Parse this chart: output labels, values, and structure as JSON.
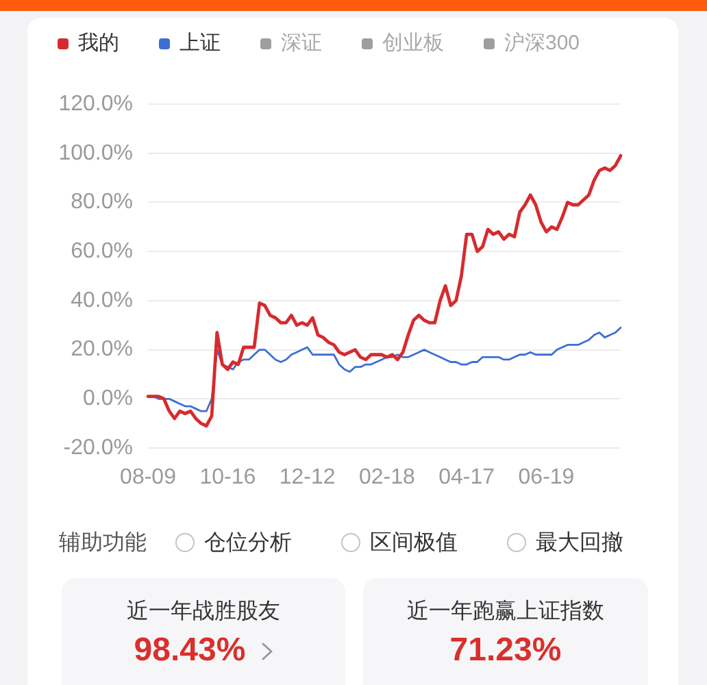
{
  "chart_data": [
    {
      "type": "line",
      "categories": [
        "08-09",
        null,
        null,
        null,
        null,
        null,
        null,
        null,
        null,
        null,
        null,
        null,
        null,
        null,
        null,
        "10-16",
        null,
        null,
        null,
        null,
        null,
        null,
        null,
        null,
        null,
        null,
        null,
        null,
        null,
        null,
        "12-12",
        null,
        null,
        null,
        null,
        null,
        null,
        null,
        null,
        null,
        null,
        null,
        null,
        null,
        null,
        "02-18",
        null,
        null,
        null,
        null,
        null,
        null,
        null,
        null,
        null,
        null,
        null,
        null,
        null,
        null,
        "04-17",
        null,
        null,
        null,
        null,
        null,
        null,
        null,
        null,
        null,
        null,
        null,
        null,
        null,
        null,
        "06-19",
        null,
        null,
        null,
        null,
        null,
        null,
        null,
        null,
        null,
        null,
        null,
        null,
        null,
        null
      ],
      "series": [
        {
          "name": "我的",
          "color": "#d62b2e",
          "values": [
            1,
            1,
            1,
            0,
            -5,
            -8,
            -5,
            -6,
            -5,
            -8,
            -10,
            -11,
            -7,
            27,
            14,
            12,
            15,
            14,
            21,
            21,
            21,
            39,
            38,
            34,
            33,
            31,
            31,
            34,
            30,
            31,
            30,
            33,
            26,
            25,
            23,
            22,
            19,
            18,
            19,
            20,
            17,
            16,
            18,
            18,
            18,
            17,
            18,
            16,
            19,
            26,
            32,
            34,
            32,
            31,
            31,
            40,
            46,
            38,
            40,
            50,
            67,
            67,
            60,
            62,
            69,
            67,
            68,
            65,
            67,
            66,
            76,
            79,
            83,
            79,
            72,
            68,
            70,
            69,
            74,
            80,
            79,
            79,
            81,
            83,
            89,
            93,
            94,
            93,
            95,
            99
          ]
        },
        {
          "name": "上证",
          "color": "#3d6fd2",
          "values": [
            1,
            1,
            0,
            0,
            0,
            -1,
            -2,
            -3,
            -3,
            -4,
            -5,
            -5,
            0,
            20,
            14,
            13,
            12,
            15,
            16,
            16,
            18,
            20,
            20,
            18,
            16,
            15,
            16,
            18,
            19,
            20,
            21,
            18,
            18,
            18,
            18,
            18,
            14,
            12,
            11,
            13,
            13,
            14,
            14,
            15,
            16,
            17,
            17,
            18,
            17,
            17,
            18,
            19,
            20,
            19,
            18,
            17,
            16,
            15,
            15,
            14,
            14,
            15,
            15,
            17,
            17,
            17,
            17,
            16,
            16,
            17,
            18,
            18,
            19,
            18,
            18,
            18,
            18,
            20,
            21,
            22,
            22,
            22,
            23,
            24,
            26,
            27,
            25,
            26,
            27,
            29
          ]
        },
        {
          "name": "深证",
          "color": "#9e9e9e",
          "values": [
            null,
            null,
            null,
            null,
            null,
            null,
            null,
            null,
            null,
            null,
            null,
            null,
            null,
            null,
            null,
            null,
            null,
            null,
            null,
            null,
            null,
            null,
            null,
            null,
            null,
            null,
            null,
            null,
            null,
            null,
            null,
            null,
            null,
            null,
            null,
            null,
            null,
            null,
            null,
            null,
            null,
            null,
            null,
            null,
            null,
            null,
            null,
            null,
            null,
            null,
            null,
            null,
            null,
            null,
            null,
            null,
            null,
            null,
            null,
            null,
            null,
            null,
            null,
            null,
            null,
            null,
            null,
            null,
            null,
            null,
            null,
            null,
            null,
            null,
            null,
            null,
            null,
            null,
            null,
            null,
            null,
            null,
            null,
            null,
            null,
            null,
            null,
            null,
            null,
            null
          ]
        },
        {
          "name": "创业板",
          "color": "#9e9e9e",
          "values": [
            null,
            null,
            null,
            null,
            null,
            null,
            null,
            null,
            null,
            null,
            null,
            null,
            null,
            null,
            null,
            null,
            null,
            null,
            null,
            null,
            null,
            null,
            null,
            null,
            null,
            null,
            null,
            null,
            null,
            null,
            null,
            null,
            null,
            null,
            null,
            null,
            null,
            null,
            null,
            null,
            null,
            null,
            null,
            null,
            null,
            null,
            null,
            null,
            null,
            null,
            null,
            null,
            null,
            null,
            null,
            null,
            null,
            null,
            null,
            null,
            null,
            null,
            null,
            null,
            null,
            null,
            null,
            null,
            null,
            null,
            null,
            null,
            null,
            null,
            null,
            null,
            null,
            null,
            null,
            null,
            null,
            null,
            null,
            null,
            null,
            null,
            null,
            null,
            null,
            null
          ]
        },
        {
          "name": "沪深300",
          "color": "#9e9e9e",
          "values": [
            null,
            null,
            null,
            null,
            null,
            null,
            null,
            null,
            null,
            null,
            null,
            null,
            null,
            null,
            null,
            null,
            null,
            null,
            null,
            null,
            null,
            null,
            null,
            null,
            null,
            null,
            null,
            null,
            null,
            null,
            null,
            null,
            null,
            null,
            null,
            null,
            null,
            null,
            null,
            null,
            null,
            null,
            null,
            null,
            null,
            null,
            null,
            null,
            null,
            null,
            null,
            null,
            null,
            null,
            null,
            null,
            null,
            null,
            null,
            null,
            null,
            null,
            null,
            null,
            null,
            null,
            null,
            null,
            null,
            null,
            null,
            null,
            null,
            null,
            null,
            null,
            null,
            null,
            null,
            null,
            null,
            null,
            null,
            null,
            null,
            null,
            null,
            null,
            null,
            null
          ]
        }
      ],
      "ylim": [
        -20,
        120
      ],
      "yticks": [
        {
          "value": -20,
          "label": "-20.0%"
        },
        {
          "value": 0,
          "label": "0.0%"
        },
        {
          "value": 20,
          "label": "20.0%"
        },
        {
          "value": 40,
          "label": "40.0%"
        },
        {
          "value": 60,
          "label": "60.0%"
        },
        {
          "value": 80,
          "label": "80.0%"
        },
        {
          "value": 100,
          "label": "100.0%"
        },
        {
          "value": 120,
          "label": "120.0%"
        }
      ],
      "grid": "y",
      "legend": "top"
    },
    {
      "type": "other",
      "annotations": [
        "辅助功能",
        "仓位分析",
        "区间极值",
        "最大回撤",
        "近一年战胜股友",
        "98.43%",
        "近一年跑赢上证指数",
        "71.23%"
      ]
    }
  ]
}
